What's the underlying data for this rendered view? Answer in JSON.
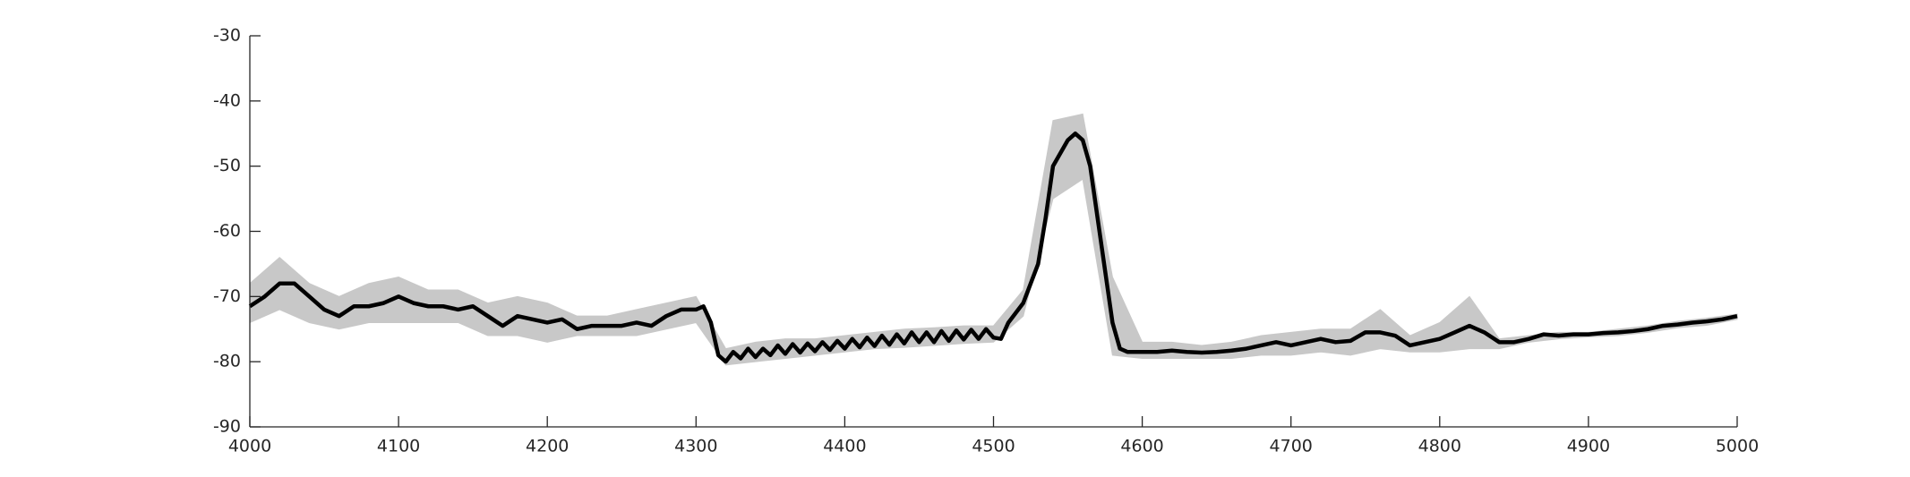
{
  "chart_data": {
    "type": "line",
    "x": [
      4000,
      4010,
      4020,
      4030,
      4040,
      4050,
      4060,
      4070,
      4080,
      4090,
      4100,
      4110,
      4120,
      4130,
      4140,
      4150,
      4160,
      4170,
      4180,
      4190,
      4200,
      4210,
      4220,
      4230,
      4240,
      4250,
      4260,
      4270,
      4280,
      4290,
      4300,
      4305,
      4310,
      4315,
      4320,
      4325,
      4330,
      4335,
      4340,
      4345,
      4350,
      4355,
      4360,
      4365,
      4370,
      4375,
      4380,
      4385,
      4390,
      4395,
      4400,
      4405,
      4410,
      4415,
      4420,
      4425,
      4430,
      4435,
      4440,
      4445,
      4450,
      4455,
      4460,
      4465,
      4470,
      4475,
      4480,
      4485,
      4490,
      4495,
      4500,
      4505,
      4510,
      4520,
      4530,
      4535,
      4540,
      4550,
      4555,
      4560,
      4565,
      4570,
      4575,
      4580,
      4585,
      4590,
      4600,
      4610,
      4620,
      4630,
      4640,
      4650,
      4660,
      4670,
      4680,
      4690,
      4700,
      4710,
      4720,
      4730,
      4740,
      4750,
      4760,
      4770,
      4780,
      4790,
      4800,
      4810,
      4820,
      4830,
      4840,
      4850,
      4860,
      4870,
      4880,
      4890,
      4900,
      4910,
      4920,
      4930,
      4940,
      4950,
      4960,
      4970,
      4980,
      4990,
      5000
    ],
    "series": [
      {
        "color": "#000000",
        "values": [
          -71.5,
          -70,
          -68,
          -68,
          -70,
          -72,
          -73,
          -71.5,
          -71.5,
          -71,
          -70,
          -71,
          -71.5,
          -71.5,
          -72,
          -71.5,
          -73,
          -74.5,
          -73,
          -73.5,
          -74,
          -73.5,
          -75,
          -74.5,
          -74.5,
          -74.5,
          -74,
          -74.5,
          -73,
          -72,
          -72,
          -71.5,
          -74,
          -79,
          -80,
          -78.5,
          -79.5,
          -78,
          -79.3,
          -78,
          -79,
          -77.5,
          -78.8,
          -77.3,
          -78.6,
          -77.2,
          -78.4,
          -77,
          -78.2,
          -76.8,
          -78,
          -76.5,
          -77.8,
          -76.3,
          -77.6,
          -76,
          -77.4,
          -75.8,
          -77.2,
          -75.5,
          -77,
          -75.5,
          -77,
          -75.3,
          -76.8,
          -75.2,
          -76.6,
          -75.1,
          -76.5,
          -75,
          -76.3,
          -76.5,
          -74,
          -71,
          -65,
          -58,
          -50,
          -46,
          -45,
          -46,
          -50,
          -58,
          -66,
          -74,
          -78,
          -78.5,
          -78.5,
          -78.5,
          -78.3,
          -78.5,
          -78.6,
          -78.5,
          -78.3,
          -78,
          -77.5,
          -77,
          -77.5,
          -77,
          -76.5,
          -77,
          -76.8,
          -75.5,
          -75.5,
          -76,
          -77.5,
          -77,
          -76.5,
          -75.5,
          -74.5,
          -75.5,
          -77,
          -77,
          -76.5,
          -75.8,
          -76,
          -75.8,
          -75.8,
          -75.6,
          -75.5,
          -75.3,
          -75,
          -74.5,
          -74.3,
          -74,
          -73.8,
          -73.5,
          -73
        ]
      }
    ],
    "band": {
      "color": "#c8c8c8",
      "x": [
        4000,
        4020,
        4040,
        4060,
        4080,
        4100,
        4120,
        4140,
        4160,
        4180,
        4200,
        4220,
        4240,
        4260,
        4280,
        4300,
        4320,
        4340,
        4360,
        4380,
        4400,
        4420,
        4440,
        4460,
        4480,
        4500,
        4520,
        4540,
        4560,
        4580,
        4600,
        4620,
        4640,
        4660,
        4680,
        4700,
        4720,
        4740,
        4760,
        4780,
        4800,
        4820,
        4840,
        4860,
        4880,
        4900,
        4920,
        4940,
        4960,
        4980,
        5000
      ],
      "upper": [
        -68,
        -64,
        -68,
        -70,
        -68,
        -67,
        -69,
        -69,
        -71,
        -70,
        -71,
        -73,
        -73,
        -72,
        -71,
        -70,
        -78,
        -77,
        -76.5,
        -76.5,
        -76,
        -75.5,
        -75,
        -74.8,
        -74.5,
        -74.5,
        -69,
        -43,
        -42,
        -67,
        -77,
        -77,
        -77.5,
        -77,
        -76,
        -75.5,
        -75,
        -75,
        -72,
        -76,
        -74,
        -70,
        -76.5,
        -76,
        -75.5,
        -75.5,
        -75,
        -74.5,
        -73.8,
        -73.3,
        -72.7
      ],
      "lower": [
        -74,
        -72,
        -74,
        -75,
        -74,
        -74,
        -74,
        -74,
        -76,
        -76,
        -77,
        -76,
        -76,
        -76,
        -75,
        -74,
        -80.5,
        -80,
        -79.5,
        -79,
        -78.5,
        -78,
        -77.8,
        -77.5,
        -77.2,
        -77,
        -73,
        -55,
        -52,
        -79,
        -79.5,
        -79.5,
        -79.5,
        -79.5,
        -79,
        -79,
        -78.5,
        -79,
        -78,
        -78.5,
        -78.5,
        -78,
        -78,
        -77,
        -76.5,
        -76.2,
        -76,
        -75.5,
        -74.8,
        -74.4,
        -73.5
      ]
    },
    "xlim": [
      4000,
      5000
    ],
    "xticks": [
      4000,
      4100,
      4200,
      4300,
      4400,
      4500,
      4600,
      4700,
      4800,
      4900,
      5000
    ],
    "ylim": [
      -90,
      -30
    ],
    "yticks": [
      -90,
      -80,
      -70,
      -60,
      -50,
      -40,
      -30
    ]
  }
}
